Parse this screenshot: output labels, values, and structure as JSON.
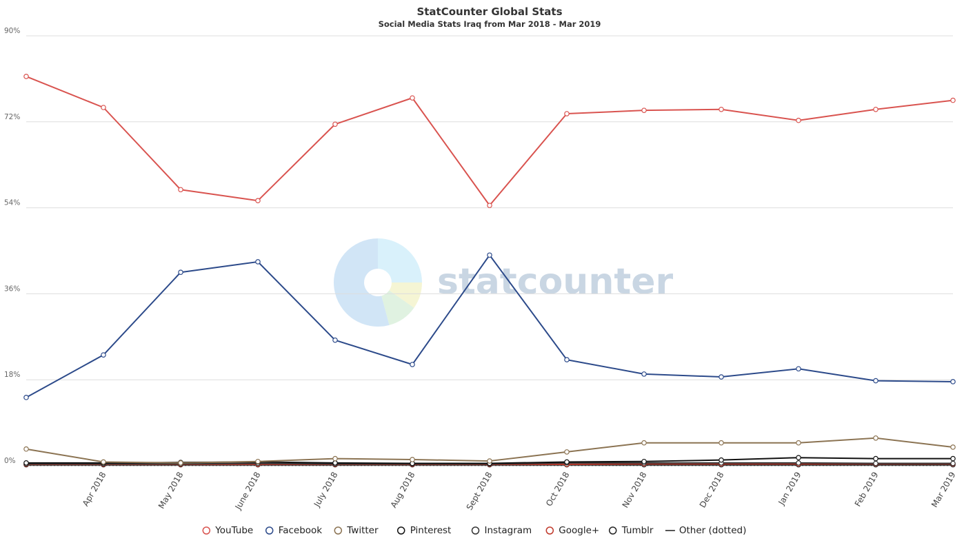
{
  "chart_data": {
    "type": "line",
    "title": "StatCounter Global Stats",
    "subtitle": "Social Media Stats Iraq from Mar 2018 - Mar 2019",
    "watermark": "statcounter",
    "xlabel": "",
    "ylabel": "",
    "x": [
      "Mar 2018",
      "Apr 2018",
      "May 2018",
      "June 2018",
      "July 2018",
      "Aug 2018",
      "Sept 2018",
      "Oct 2018",
      "Nov 2018",
      "Dec 2018",
      "Jan 2019",
      "Feb 2019",
      "Mar 2019"
    ],
    "x_tick_labels": [
      "",
      "Apr 2018",
      "May 2018",
      "June 2018",
      "July 2018",
      "Aug 2018",
      "Sept 2018",
      "Oct 2018",
      "Nov 2018",
      "Dec 2018",
      "Jan 2019",
      "Feb 2019",
      "Mar 2019"
    ],
    "ylim": [
      0,
      90
    ],
    "yticks": [
      0,
      18,
      36,
      54,
      72,
      90
    ],
    "ytick_labels": [
      "0%",
      "18%",
      "36%",
      "54%",
      "72%",
      "90%"
    ],
    "grid": true,
    "legend_position": "bottom",
    "series": [
      {
        "name": "YouTube",
        "color": "#d9534f",
        "values": [
          81.5,
          75.0,
          57.8,
          55.5,
          71.5,
          77.0,
          54.5,
          73.7,
          74.4,
          74.6,
          72.3,
          74.6,
          76.5
        ]
      },
      {
        "name": "Facebook",
        "color": "#2c4a8a",
        "values": [
          14.3,
          23.2,
          40.5,
          42.7,
          26.3,
          21.2,
          44.1,
          22.2,
          19.2,
          18.6,
          20.3,
          17.8,
          17.6
        ]
      },
      {
        "name": "Twitter",
        "color": "#8b7352",
        "values": [
          3.5,
          0.8,
          0.6,
          0.9,
          1.5,
          1.3,
          1.0,
          2.9,
          4.8,
          4.8,
          4.8,
          5.8,
          3.9
        ]
      },
      {
        "name": "Pinterest",
        "color": "#111111",
        "values": [
          0.6,
          0.6,
          0.7,
          0.8,
          0.6,
          0.5,
          0.5,
          0.8,
          0.9,
          1.2,
          1.7,
          1.5,
          1.5
        ]
      },
      {
        "name": "Instagram",
        "color": "#333333",
        "values": [
          0.4,
          0.4,
          0.4,
          0.5,
          0.4,
          0.4,
          0.4,
          0.6,
          0.6,
          0.6,
          0.6,
          0.5,
          0.5
        ]
      },
      {
        "name": "Google+",
        "color": "#c0392b",
        "values": [
          0.3,
          0.3,
          0.3,
          0.3,
          0.3,
          0.3,
          0.3,
          0.3,
          0.4,
          0.4,
          0.4,
          0.4,
          0.4
        ]
      },
      {
        "name": "Tumblr",
        "color": "#222222",
        "values": [
          0.2,
          0.2,
          0.2,
          0.2,
          0.2,
          0.2,
          0.2,
          0.2,
          0.2,
          0.2,
          0.2,
          0.2,
          0.2
        ]
      },
      {
        "name": "Other (dotted)",
        "color": "#555555",
        "dotted": true,
        "values": [
          0.1,
          0.1,
          0.1,
          0.1,
          0.1,
          0.1,
          0.1,
          0.1,
          0.1,
          0.1,
          0.1,
          0.1,
          0.1
        ]
      }
    ]
  }
}
